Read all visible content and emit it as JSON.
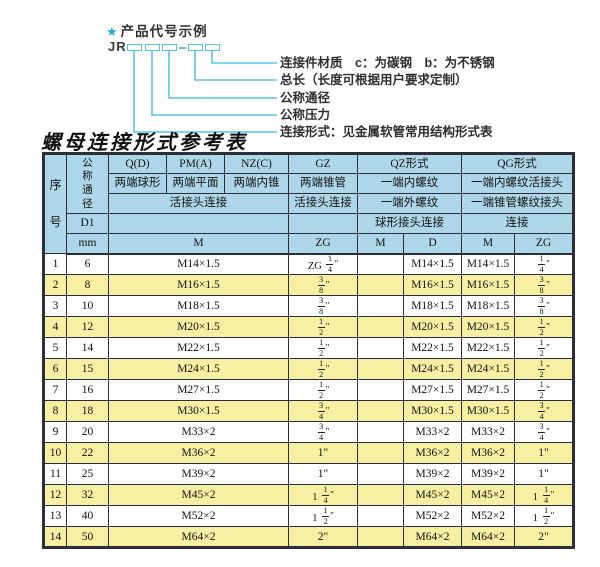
{
  "colors": {
    "border": "#2e2e3a",
    "header_bg": "#afd7ea",
    "row_alt_bg": "#f7f0a3",
    "accent_cyan": "#57c5e8",
    "star_blue": "#2aa7de"
  },
  "diagram": {
    "star": "★",
    "heading": "产品代号示例",
    "code_prefix": "JR",
    "labels": [
      "连接件材质　c：为碳钢　b：为不锈钢",
      "总长（长度可根据用户要求定制）",
      "公称通径",
      "公称压力",
      "连接形式：见金属软管常用结构形式表"
    ]
  },
  "table": {
    "title": "螺母连接形式参考表",
    "header": {
      "seq": "序号",
      "dn": "公称通径",
      "d1": "D1",
      "mm": "mm",
      "q": "Q(D)",
      "q_desc": "两端球形",
      "pm": "PM(A)",
      "pm_desc": "两端平面",
      "nz": "NZ(C)",
      "nz_desc": "两端内锥",
      "union_conn": "活接头连接",
      "gz": "GZ",
      "gz_desc": "两端锥管",
      "gz_conn": "活接头连接",
      "gz_unit": "ZG",
      "m_unit": "M",
      "qz": "QZ形式",
      "qz_desc1": "一端内螺纹",
      "qz_desc2": "一端外螺纹",
      "qz_conn": "球形接头连接",
      "qz_m": "M",
      "qz_d": "D",
      "qg": "QG形式",
      "qg_desc1": "一端内螺纹活接头",
      "qg_desc2": "一端锥管螺纹接头",
      "qg_conn": "连接",
      "qg_m": "M",
      "qg_zg": "ZG"
    },
    "rows": [
      {
        "seq": "1",
        "mm": "6",
        "m": "M14×1.5",
        "zg": "ZG 1/4\"",
        "qz_m": "",
        "qz_d": "M14×1.5",
        "qg_m": "M14×1.5",
        "qg_zg": "1/4\""
      },
      {
        "seq": "2",
        "mm": "8",
        "m": "M16×1.5",
        "zg": "3/8\"",
        "qz_m": "",
        "qz_d": "M16×1.5",
        "qg_m": "M16×1.5",
        "qg_zg": "3/8\""
      },
      {
        "seq": "3",
        "mm": "10",
        "m": "M18×1.5",
        "zg": "3/8\"",
        "qz_m": "",
        "qz_d": "M18×1.5",
        "qg_m": "M18×1.5",
        "qg_zg": "3/8\""
      },
      {
        "seq": "4",
        "mm": "12",
        "m": "M20×1.5",
        "zg": "1/2\"",
        "qz_m": "",
        "qz_d": "M20×1.5",
        "qg_m": "M20×1.5",
        "qg_zg": "1/2\""
      },
      {
        "seq": "5",
        "mm": "14",
        "m": "M22×1.5",
        "zg": "1/2\"",
        "qz_m": "",
        "qz_d": "M22×1.5",
        "qg_m": "M22×1.5",
        "qg_zg": "1/2\""
      },
      {
        "seq": "6",
        "mm": "15",
        "m": "M24×1.5",
        "zg": "1/2\"",
        "qz_m": "",
        "qz_d": "M24×1.5",
        "qg_m": "M24×1.5",
        "qg_zg": "1/2\""
      },
      {
        "seq": "7",
        "mm": "16",
        "m": "M27×1.5",
        "zg": "1/2\"",
        "qz_m": "",
        "qz_d": "M27×1.5",
        "qg_m": "M27×1.5",
        "qg_zg": "1/2\""
      },
      {
        "seq": "8",
        "mm": "18",
        "m": "M30×1.5",
        "zg": "3/4\"",
        "qz_m": "",
        "qz_d": "M30×1.5",
        "qg_m": "M30×1.5",
        "qg_zg": "3/4\""
      },
      {
        "seq": "9",
        "mm": "20",
        "m": "M33×2",
        "zg": "3/4\"",
        "qz_m": "",
        "qz_d": "M33×2",
        "qg_m": "M33×2",
        "qg_zg": "3/4\""
      },
      {
        "seq": "10",
        "mm": "22",
        "m": "M36×2",
        "zg": "1\"",
        "qz_m": "",
        "qz_d": "M36×2",
        "qg_m": "M36×2",
        "qg_zg": "1\""
      },
      {
        "seq": "11",
        "mm": "25",
        "m": "M39×2",
        "zg": "1\"",
        "qz_m": "",
        "qz_d": "M39×2",
        "qg_m": "M39×2",
        "qg_zg": "1\""
      },
      {
        "seq": "12",
        "mm": "32",
        "m": "M45×2",
        "zg": "1 1/4\"",
        "qz_m": "",
        "qz_d": "M45×2",
        "qg_m": "M45×2",
        "qg_zg": "1 1/4\""
      },
      {
        "seq": "13",
        "mm": "40",
        "m": "M52×2",
        "zg": "1 1/2\"",
        "qz_m": "",
        "qz_d": "M52×2",
        "qg_m": "M52×2",
        "qg_zg": "1 1/2\""
      },
      {
        "seq": "14",
        "mm": "50",
        "m": "M64×2",
        "zg": "2\"",
        "qz_m": "",
        "qz_d": "M64×2",
        "qg_m": "M64×2",
        "qg_zg": "2\""
      }
    ]
  }
}
